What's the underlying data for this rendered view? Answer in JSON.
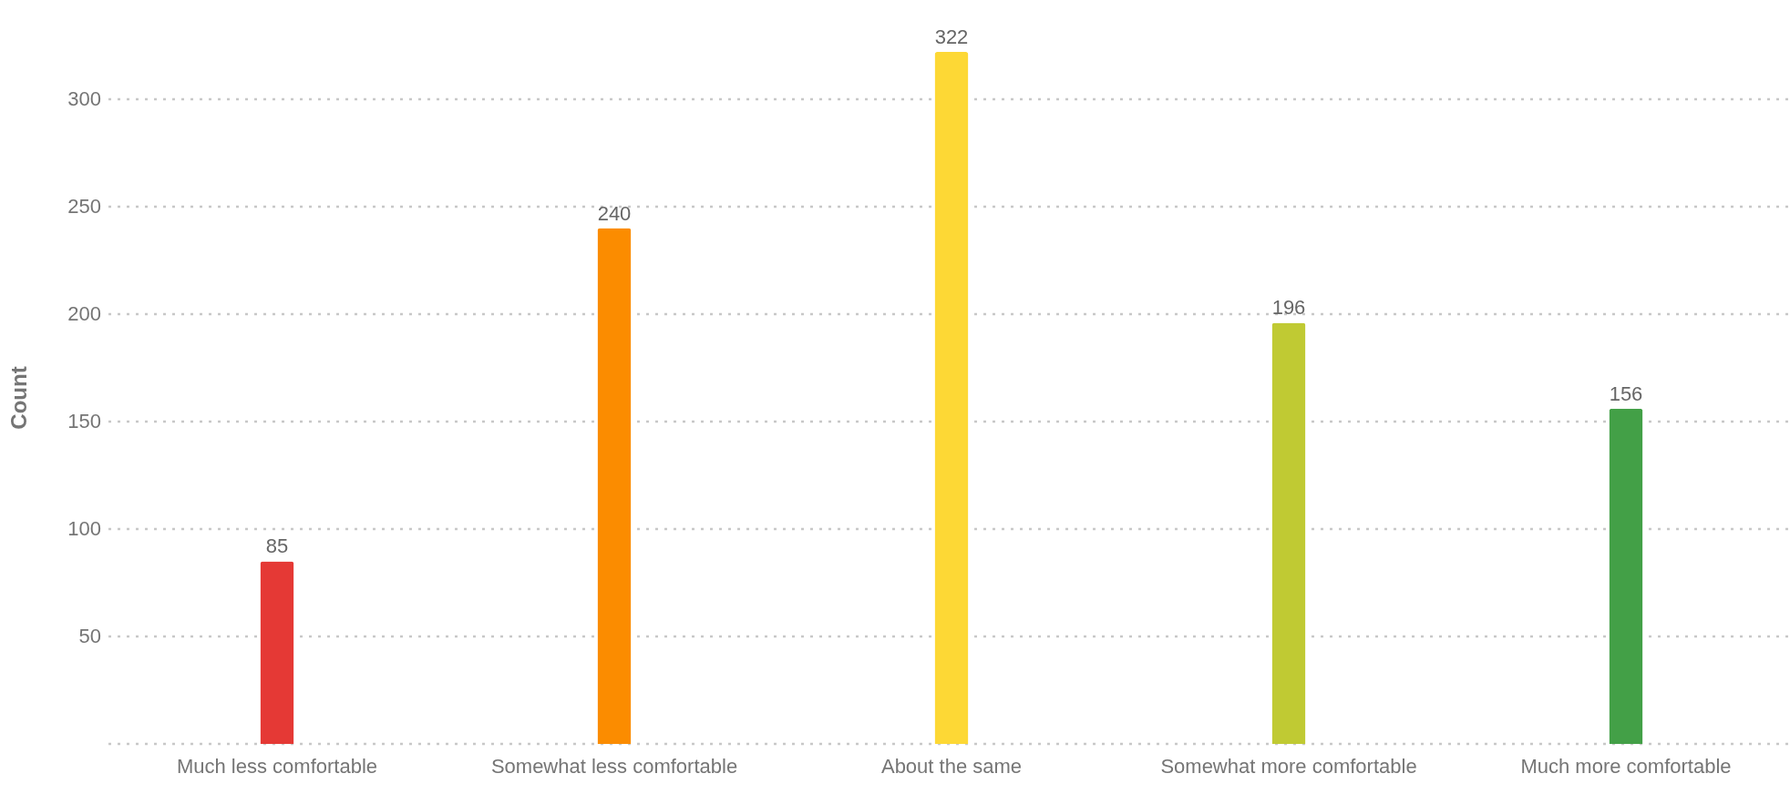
{
  "chart_data": {
    "type": "bar",
    "ylabel": "Count",
    "categories": [
      "Much less comfortable",
      "Somewhat less comfortable",
      "About the same",
      "Somewhat more comfortable",
      "Much more comfortable"
    ],
    "values": [
      85,
      240,
      322,
      196,
      156
    ],
    "colors": [
      "#e53935",
      "#fb8c00",
      "#fdd835",
      "#c0ca33",
      "#43a047"
    ],
    "ylim": [
      0,
      322
    ],
    "yticks": [
      {
        "value": 0,
        "label": null
      },
      50,
      100,
      150,
      200,
      250,
      300
    ],
    "grid": "y",
    "data_labels": true
  }
}
